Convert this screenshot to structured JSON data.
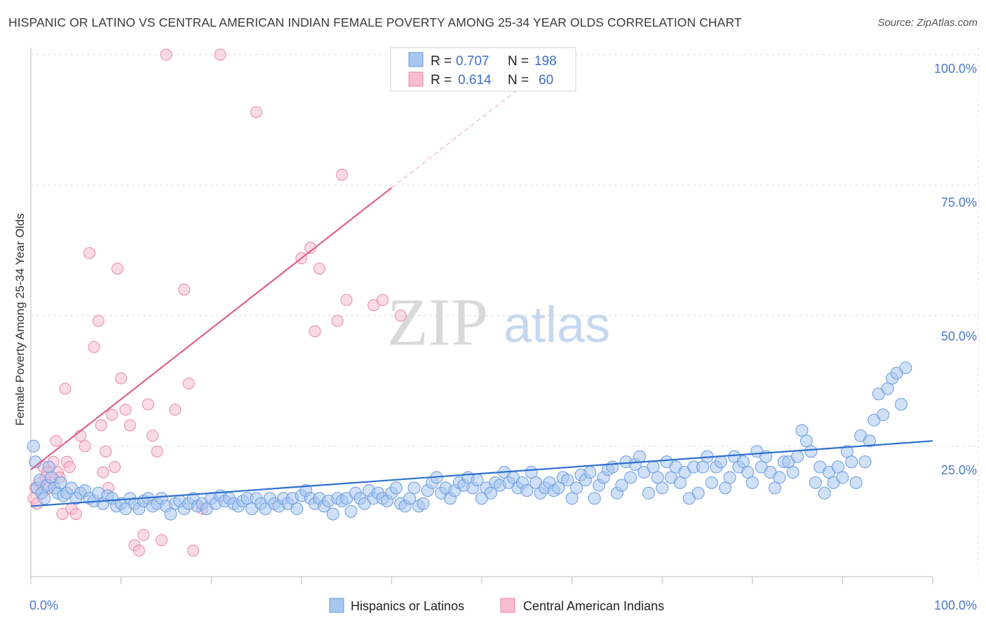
{
  "title": "HISPANIC OR LATINO VS CENTRAL AMERICAN INDIAN FEMALE POVERTY AMONG 25-34 YEAR OLDS CORRELATION CHART",
  "source": "Source: ZipAtlas.com",
  "watermark": {
    "zip": "ZIP",
    "atlas": "atlas"
  },
  "legend_top": {
    "rows": [
      {
        "r_label": "R =",
        "r_value": "0.707",
        "n_label": "N =",
        "n_value": "198",
        "color": "#a8c6f0",
        "stroke": "#6a9be0"
      },
      {
        "r_label": "R =",
        "r_value": "0.614",
        "n_label": "N =",
        "n_value": "60",
        "color": "#f6bcd0",
        "stroke": "#e889a8"
      }
    ]
  },
  "legend_bottom": [
    {
      "label": "Hispanics or Latinos",
      "color": "#a8c6f0",
      "stroke": "#6a9be0"
    },
    {
      "label": "Central American Indians",
      "color": "#f6bcd0",
      "stroke": "#e889a8"
    }
  ],
  "chart_data": {
    "type": "scatter",
    "title": "HISPANIC OR LATINO VS CENTRAL AMERICAN INDIAN FEMALE POVERTY AMONG 25-34 YEAR OLDS CORRELATION CHART",
    "xlabel": "",
    "ylabel": "Female Poverty Among 25-34 Year Olds",
    "xlim": [
      0,
      100
    ],
    "ylim": [
      0,
      100
    ],
    "x_tick_labels": [
      "0.0%",
      "100.0%"
    ],
    "y_tick_labels": [
      "100.0%",
      "75.0%",
      "50.0%",
      "25.0%"
    ],
    "y_ticks": [
      100,
      75,
      50,
      25
    ],
    "grid": true,
    "colors": {
      "blue": "#a8c6f0",
      "blue_stroke": "#6a9be0",
      "blue_line": "#2f6fd0",
      "pink": "#f6bcd0",
      "pink_stroke": "#e889a8",
      "pink_line": "#e0608d"
    },
    "series": [
      {
        "name": "Hispanics or Latinos",
        "trend": {
          "x": [
            0,
            100
          ],
          "y": [
            13.5,
            26.0
          ]
        },
        "points": [
          [
            0.3,
            25
          ],
          [
            0.5,
            22
          ],
          [
            0.7,
            17
          ],
          [
            1,
            18.5
          ],
          [
            1.2,
            16
          ],
          [
            1.5,
            15
          ],
          [
            1.8,
            17.5
          ],
          [
            2,
            21
          ],
          [
            2.3,
            19
          ],
          [
            2.6,
            17
          ],
          [
            3,
            16
          ],
          [
            3.3,
            18
          ],
          [
            3.6,
            15.5
          ],
          [
            4,
            16
          ],
          [
            4.5,
            17
          ],
          [
            5,
            15
          ],
          [
            5.5,
            16
          ],
          [
            6,
            16.5
          ],
          [
            6.5,
            15
          ],
          [
            7,
            14.5
          ],
          [
            7.5,
            16
          ],
          [
            8,
            14
          ],
          [
            8.5,
            15.5
          ],
          [
            9,
            15
          ],
          [
            9.5,
            13.5
          ],
          [
            10,
            14
          ],
          [
            10.5,
            13
          ],
          [
            11,
            15
          ],
          [
            11.5,
            14
          ],
          [
            12,
            13
          ],
          [
            12.5,
            14.5
          ],
          [
            13,
            15
          ],
          [
            13.5,
            13.5
          ],
          [
            14,
            14
          ],
          [
            14.5,
            15
          ],
          [
            15,
            13.5
          ],
          [
            15.5,
            12
          ],
          [
            16,
            14
          ],
          [
            16.5,
            14.5
          ],
          [
            17,
            13
          ],
          [
            17.5,
            14
          ],
          [
            18,
            15
          ],
          [
            18.5,
            13.5
          ],
          [
            19,
            14
          ],
          [
            19.5,
            13
          ],
          [
            20,
            15
          ],
          [
            20.5,
            14
          ],
          [
            21,
            15.5
          ],
          [
            21.5,
            14.5
          ],
          [
            22,
            15
          ],
          [
            22.5,
            14
          ],
          [
            23,
            13.5
          ],
          [
            23.5,
            14.5
          ],
          [
            24,
            15
          ],
          [
            24.5,
            13
          ],
          [
            25,
            15
          ],
          [
            25.5,
            14
          ],
          [
            26,
            13
          ],
          [
            26.5,
            15
          ],
          [
            27,
            14
          ],
          [
            27.5,
            13.5
          ],
          [
            28,
            15
          ],
          [
            28.5,
            14
          ],
          [
            29,
            15
          ],
          [
            29.5,
            13
          ],
          [
            30,
            15.5
          ],
          [
            30.5,
            16.5
          ],
          [
            31,
            15
          ],
          [
            31.5,
            14
          ],
          [
            32,
            15
          ],
          [
            32.5,
            13.5
          ],
          [
            33,
            14.5
          ],
          [
            33.5,
            12
          ],
          [
            34,
            15
          ],
          [
            34.5,
            14.5
          ],
          [
            35,
            15
          ],
          [
            35.5,
            12.5
          ],
          [
            36,
            16
          ],
          [
            36.5,
            15
          ],
          [
            37,
            14
          ],
          [
            37.5,
            16.5
          ],
          [
            38,
            15
          ],
          [
            38.5,
            16
          ],
          [
            39,
            15
          ],
          [
            39.5,
            14.5
          ],
          [
            40,
            16
          ],
          [
            40.5,
            17
          ],
          [
            41,
            14
          ],
          [
            41.5,
            13.5
          ],
          [
            42,
            15
          ],
          [
            42.5,
            17
          ],
          [
            43,
            13.5
          ],
          [
            43.5,
            14
          ],
          [
            44,
            16.5
          ],
          [
            44.5,
            18
          ],
          [
            45,
            19
          ],
          [
            45.5,
            16
          ],
          [
            46,
            17
          ],
          [
            46.5,
            15
          ],
          [
            47,
            16.5
          ],
          [
            47.5,
            18
          ],
          [
            48,
            17.5
          ],
          [
            48.5,
            19
          ],
          [
            49,
            17
          ],
          [
            49.5,
            18.5
          ],
          [
            50,
            15
          ],
          [
            50.5,
            17
          ],
          [
            51,
            16
          ],
          [
            51.5,
            18
          ],
          [
            52,
            17.5
          ],
          [
            52.5,
            20
          ],
          [
            53,
            18
          ],
          [
            53.5,
            19
          ],
          [
            54,
            17
          ],
          [
            54.5,
            18
          ],
          [
            55,
            16.5
          ],
          [
            55.5,
            20
          ],
          [
            56,
            18
          ],
          [
            56.5,
            16
          ],
          [
            57,
            17
          ],
          [
            57.5,
            18
          ],
          [
            58,
            16.5
          ],
          [
            58.5,
            17
          ],
          [
            59,
            19
          ],
          [
            59.5,
            18.5
          ],
          [
            60,
            15
          ],
          [
            60.5,
            17
          ],
          [
            61,
            19.5
          ],
          [
            61.5,
            18.5
          ],
          [
            62,
            20
          ],
          [
            62.5,
            15
          ],
          [
            63,
            17.5
          ],
          [
            63.5,
            19
          ],
          [
            64,
            20.5
          ],
          [
            64.5,
            21
          ],
          [
            65,
            16
          ],
          [
            65.5,
            17.5
          ],
          [
            66,
            22
          ],
          [
            66.5,
            19
          ],
          [
            67,
            21.5
          ],
          [
            67.5,
            23
          ],
          [
            68,
            20
          ],
          [
            68.5,
            16
          ],
          [
            69,
            21
          ],
          [
            69.5,
            19
          ],
          [
            70,
            17
          ],
          [
            70.5,
            22
          ],
          [
            71,
            19
          ],
          [
            71.5,
            21
          ],
          [
            72,
            18
          ],
          [
            72.5,
            20
          ],
          [
            73,
            15
          ],
          [
            73.5,
            21
          ],
          [
            74,
            16
          ],
          [
            74.5,
            21
          ],
          [
            75,
            23
          ],
          [
            75.5,
            18
          ],
          [
            76,
            21
          ],
          [
            76.5,
            22
          ],
          [
            77,
            17
          ],
          [
            77.5,
            19
          ],
          [
            78,
            23
          ],
          [
            78.5,
            21
          ],
          [
            79,
            22
          ],
          [
            79.5,
            20
          ],
          [
            80,
            18
          ],
          [
            80.5,
            24
          ],
          [
            81,
            21
          ],
          [
            81.5,
            23
          ],
          [
            82,
            20
          ],
          [
            82.5,
            17
          ],
          [
            83,
            19
          ],
          [
            83.5,
            22
          ],
          [
            84,
            22
          ],
          [
            84.5,
            20
          ],
          [
            85,
            23
          ],
          [
            85.5,
            28
          ],
          [
            86,
            26
          ],
          [
            86.5,
            24
          ],
          [
            87,
            18
          ],
          [
            87.5,
            21
          ],
          [
            88,
            16
          ],
          [
            88.5,
            20
          ],
          [
            89,
            18
          ],
          [
            89.5,
            21
          ],
          [
            90,
            19
          ],
          [
            90.5,
            24
          ],
          [
            91,
            22
          ],
          [
            91.5,
            18
          ],
          [
            92,
            27
          ],
          [
            92.5,
            22
          ],
          [
            93,
            26
          ],
          [
            93.5,
            30
          ],
          [
            94,
            35
          ],
          [
            94.5,
            31
          ],
          [
            95,
            36
          ],
          [
            95.5,
            38
          ],
          [
            96,
            39
          ],
          [
            96.5,
            33
          ],
          [
            97,
            40
          ]
        ]
      },
      {
        "name": "Central American Indians",
        "trend": {
          "x": [
            0,
            40
          ],
          "y": [
            20.5,
            74.5
          ]
        },
        "trend_dashed": {
          "x": [
            40,
            54.5
          ],
          "y": [
            74.5,
            94
          ]
        },
        "points": [
          [
            0.3,
            15
          ],
          [
            0.5,
            17
          ],
          [
            0.7,
            14
          ],
          [
            1,
            18
          ],
          [
            1.2,
            16
          ],
          [
            1.4,
            21
          ],
          [
            1.6,
            19
          ],
          [
            1.8,
            20
          ],
          [
            2,
            17
          ],
          [
            2.2,
            18
          ],
          [
            2.5,
            22
          ],
          [
            2.8,
            26
          ],
          [
            3,
            20
          ],
          [
            3.2,
            19
          ],
          [
            3.5,
            12
          ],
          [
            3.8,
            36
          ],
          [
            4,
            22
          ],
          [
            4.3,
            21
          ],
          [
            4.5,
            13
          ],
          [
            5,
            12
          ],
          [
            5.5,
            27
          ],
          [
            6,
            25
          ],
          [
            6.5,
            62
          ],
          [
            7,
            44
          ],
          [
            7.5,
            49
          ],
          [
            7.8,
            29
          ],
          [
            8,
            20
          ],
          [
            8.3,
            24
          ],
          [
            8.6,
            17
          ],
          [
            9,
            31
          ],
          [
            9.3,
            21
          ],
          [
            9.6,
            59
          ],
          [
            10,
            38
          ],
          [
            10.5,
            32
          ],
          [
            11,
            29
          ],
          [
            11.5,
            6
          ],
          [
            12,
            5
          ],
          [
            12.5,
            8
          ],
          [
            13,
            33
          ],
          [
            13.5,
            27
          ],
          [
            14,
            24
          ],
          [
            14.5,
            7
          ],
          [
            15,
            100
          ],
          [
            16,
            32
          ],
          [
            17,
            55
          ],
          [
            17.5,
            37
          ],
          [
            18,
            5
          ],
          [
            19,
            13
          ],
          [
            21,
            100
          ],
          [
            25,
            89
          ],
          [
            30,
            61
          ],
          [
            31,
            63
          ],
          [
            31.5,
            47
          ],
          [
            32,
            59
          ],
          [
            34,
            49
          ],
          [
            34.5,
            77
          ],
          [
            35,
            53
          ],
          [
            38,
            52
          ],
          [
            39,
            53
          ],
          [
            41,
            50
          ]
        ]
      }
    ]
  }
}
